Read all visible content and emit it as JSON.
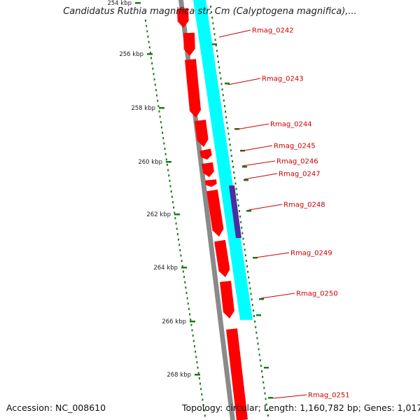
{
  "title": "Candidatus Ruthia magnifica str. Cm (Calyptogena magnifica),...",
  "footer": {
    "accession": "Accession: NC_008610",
    "summary": "Topology: circular; Length: 1,160,782 bp; Genes: 1,017"
  },
  "colors": {
    "gene_forward": "#ff0000",
    "cds_strand": "#00ffff",
    "highlight": "#4b2ea0",
    "backbone": "#8a8a8a",
    "ruler": "#1a7a1a",
    "label": "#cc0000"
  },
  "ruler": {
    "unit": "kbp",
    "ticks": [
      "254 kbp",
      "256 kbp",
      "258 kbp",
      "260 kbp",
      "262 kbp",
      "264 kbp",
      "266 kbp",
      "268 kbp"
    ]
  },
  "genes": [
    {
      "name": "Rmag_0242"
    },
    {
      "name": "Rmag_0243"
    },
    {
      "name": "Rmag_0244"
    },
    {
      "name": "Rmag_0245"
    },
    {
      "name": "Rmag_0246"
    },
    {
      "name": "Rmag_0247"
    },
    {
      "name": "Rmag_0248"
    },
    {
      "name": "Rmag_0249"
    },
    {
      "name": "Rmag_0250"
    },
    {
      "name": "Rmag_0251"
    }
  ]
}
